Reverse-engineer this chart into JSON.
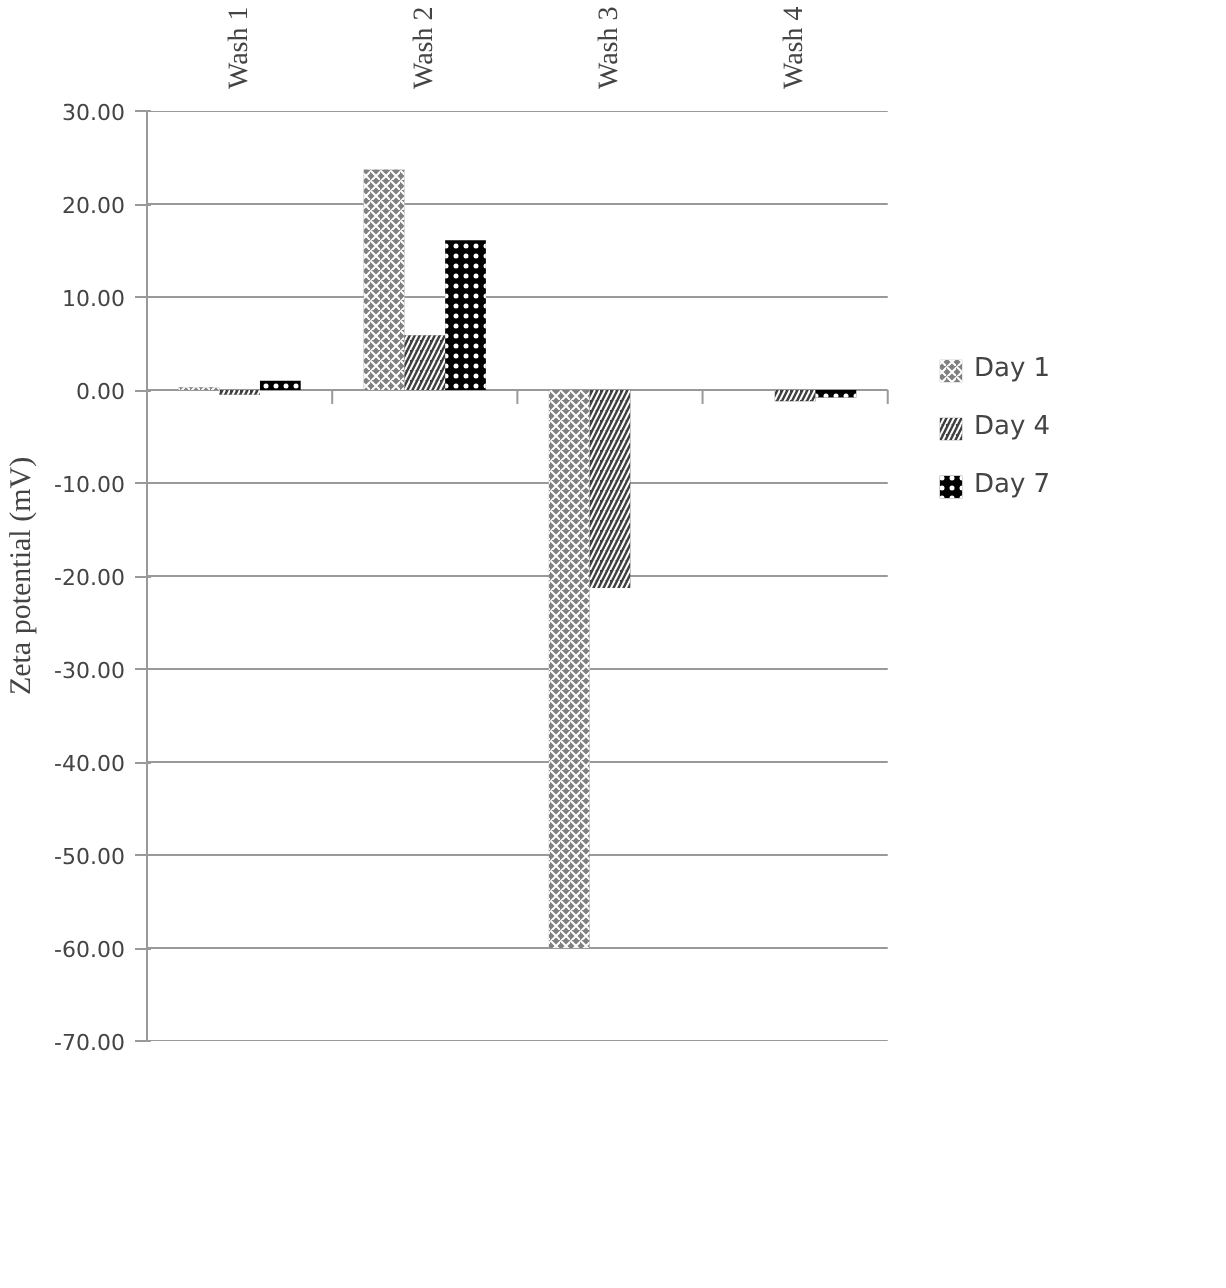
{
  "chart_data": {
    "type": "bar",
    "ylabel": "Zeta potential (mV)",
    "categories": [
      "Wash 1",
      "Wash 2",
      "Wash 3",
      "Wash 4"
    ],
    "series": [
      {
        "name": "Day 1",
        "color": "#808080",
        "values": [
          0.3,
          23.7,
          -60.0,
          0.0
        ]
      },
      {
        "name": "Day 4",
        "color": "#404040",
        "values": [
          -0.5,
          5.9,
          -21.3,
          -1.2
        ]
      },
      {
        "name": "Day 7",
        "color": "#000000",
        "values": [
          1.0,
          16.1,
          0.0,
          -0.8
        ]
      }
    ],
    "ylim": [
      -70,
      30
    ],
    "yticks": [
      {
        "value": -70,
        "label": "-70.00"
      },
      {
        "value": -60,
        "label": "-60.00"
      },
      {
        "value": -50,
        "label": "-50.00"
      },
      {
        "value": -40,
        "label": "-40.00"
      },
      {
        "value": -30,
        "label": "-30.00"
      },
      {
        "value": -20,
        "label": "-20.00"
      },
      {
        "value": -10,
        "label": "-10.00"
      },
      {
        "value": 0,
        "label": "0.00"
      },
      {
        "value": 10,
        "label": "10.00"
      },
      {
        "value": 20,
        "label": "20.00"
      },
      {
        "value": 30,
        "label": "30.00"
      }
    ],
    "grid": "y",
    "legend": "right"
  }
}
